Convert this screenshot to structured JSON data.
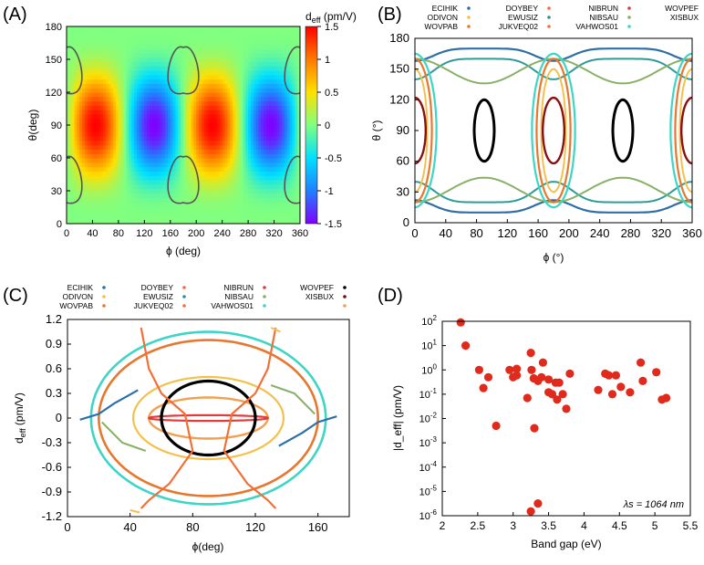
{
  "chart_data": [
    {
      "panel": "(A)",
      "type": "heatmap",
      "xlabel": "ϕ (deg)",
      "ylabel": "θ(deg)",
      "xlim": [
        0,
        360
      ],
      "ylim": [
        0,
        180
      ],
      "xticks": [
        "0",
        "40",
        "80",
        "120",
        "160",
        "200",
        "240",
        "280",
        "320",
        "360"
      ],
      "yticks": [
        "0",
        "30",
        "60",
        "90",
        "120",
        "150",
        "180"
      ],
      "colorbar": {
        "label": "d_eff (pm/V)",
        "label_main": "d",
        "label_sub": "eff",
        "label_rest": " (pm/V)",
        "range": [
          -1.5,
          1.5
        ],
        "ticks": [
          "1.5",
          "1",
          "0.5",
          "0",
          "-0.5",
          "-1",
          "-1.5"
        ],
        "colors": [
          "#ff0000",
          "#ff7a00",
          "#ffe000",
          "#80ff80",
          "#00e0ff",
          "#2080ff",
          "#8000ff"
        ]
      },
      "maxima_phi": [
        45,
        225
      ],
      "minima_phi": [
        135,
        315
      ],
      "contour_color": "#555555"
    },
    {
      "panel": "(B)",
      "type": "line",
      "xlabel": "ϕ (°)",
      "ylabel": "θ (°)",
      "xlim": [
        0,
        360
      ],
      "ylim": [
        0,
        180
      ],
      "xticks": [
        "0",
        "40",
        "80",
        "120",
        "160",
        "200",
        "240",
        "280",
        "320",
        "360"
      ],
      "yticks": [
        "0",
        "30",
        "60",
        "90",
        "120",
        "150",
        "180"
      ],
      "legend": [
        {
          "name": "ECIHIK",
          "color": "#2e6fa7"
        },
        {
          "name": "DOYBEY",
          "color": "#ff6a3d"
        },
        {
          "name": "NIBRUN",
          "color": "#e03c3c"
        },
        {
          "name": "WOVPEF",
          "color": "#2f9a9a"
        },
        {
          "name": "ODIVON",
          "color": "#f5c04a"
        },
        {
          "name": "EWUSIZ",
          "color": "#2f8fa0"
        },
        {
          "name": "NIBSAU",
          "color": "#88b067"
        },
        {
          "name": "XISBUX",
          "color": "#000000"
        },
        {
          "name": "WOVPAB",
          "color": "#e8772e"
        },
        {
          "name": "JUKVEQ02",
          "color": "#f07038"
        },
        {
          "name": "VAHWOS01",
          "color": "#3dd6c6"
        },
        {
          "name": "",
          "color": "#8b1010"
        }
      ]
    },
    {
      "panel": "(C)",
      "type": "line",
      "xlabel": "ϕ(deg)",
      "ylabel": "d_eff (pm/V)",
      "ylabel_main": "d",
      "ylabel_sub": "eff",
      "ylabel_rest": " (pm/V)",
      "xlim": [
        0,
        180
      ],
      "ylim": [
        -1.2,
        1.2
      ],
      "xticks": [
        "0",
        "40",
        "80",
        "120",
        "160"
      ],
      "yticks": [
        "1.2",
        "0.9",
        "0.6",
        "0.3",
        "0",
        "-0.3",
        "-0.6",
        "-0.9",
        "-1.2"
      ],
      "legend": [
        {
          "name": "ECIHIK",
          "color": "#2e6fa7"
        },
        {
          "name": "DOYBEY",
          "color": "#ff6a3d"
        },
        {
          "name": "NIBRUN",
          "color": "#e03c3c"
        },
        {
          "name": "WOVPEF",
          "color": "#000000"
        },
        {
          "name": "ODIVON",
          "color": "#f5c04a"
        },
        {
          "name": "EWUSIZ",
          "color": "#2f8fa0"
        },
        {
          "name": "NIBSAU",
          "color": "#88b067"
        },
        {
          "name": "XISBUX",
          "color": "#6a0f0f"
        },
        {
          "name": "WOVPAB",
          "color": "#e8772e"
        },
        {
          "name": "JUKVEQ02",
          "color": "#f07038"
        },
        {
          "name": "VAHWOS01",
          "color": "#3dd6c6"
        },
        {
          "name": "",
          "color": "#f0a050"
        }
      ]
    },
    {
      "panel": "(D)",
      "type": "scatter",
      "xlabel": "Band gap (eV)",
      "ylabel": "|d_eff| (pm/V)",
      "xlim": [
        2,
        5.5
      ],
      "ylim_log10": [
        -6,
        2
      ],
      "xticks": [
        "2",
        "2.5",
        "3",
        "3.5",
        "4",
        "4.5",
        "5",
        "5.5"
      ],
      "yticks": [
        "10^2",
        "10^1",
        "10^0",
        "10^-1",
        "10^-2",
        "10^-3",
        "10^-4",
        "10^-5",
        "10^-6"
      ],
      "annotation": "λs = 1064 nm",
      "marker_color": "#e02a1c",
      "points": [
        [
          2.26,
          90
        ],
        [
          2.33,
          10
        ],
        [
          2.52,
          1.0
        ],
        [
          2.58,
          0.18
        ],
        [
          2.65,
          0.5
        ],
        [
          2.76,
          0.005
        ],
        [
          2.95,
          1.0
        ],
        [
          3.0,
          0.5
        ],
        [
          3.05,
          1.1
        ],
        [
          3.05,
          0.6
        ],
        [
          3.2,
          0.07
        ],
        [
          3.25,
          5.0
        ],
        [
          3.26,
          1.0
        ],
        [
          3.29,
          0.45
        ],
        [
          3.3,
          0.004
        ],
        [
          3.25,
          1.5e-06
        ],
        [
          3.35,
          3.2e-06
        ],
        [
          3.35,
          0.35
        ],
        [
          3.4,
          0.5
        ],
        [
          3.42,
          2.0
        ],
        [
          3.5,
          0.4
        ],
        [
          3.5,
          0.12
        ],
        [
          3.55,
          0.1
        ],
        [
          3.6,
          0.3
        ],
        [
          3.62,
          0.06
        ],
        [
          3.65,
          0.3
        ],
        [
          3.7,
          0.1
        ],
        [
          3.75,
          0.025
        ],
        [
          3.8,
          0.7
        ],
        [
          4.2,
          0.15
        ],
        [
          4.3,
          0.7
        ],
        [
          4.35,
          0.6
        ],
        [
          4.4,
          0.1
        ],
        [
          4.45,
          0.6
        ],
        [
          4.52,
          0.2
        ],
        [
          4.65,
          0.12
        ],
        [
          4.8,
          2.0
        ],
        [
          4.83,
          0.35
        ],
        [
          5.02,
          0.8
        ],
        [
          5.1,
          0.06
        ],
        [
          5.16,
          0.07
        ]
      ]
    }
  ]
}
